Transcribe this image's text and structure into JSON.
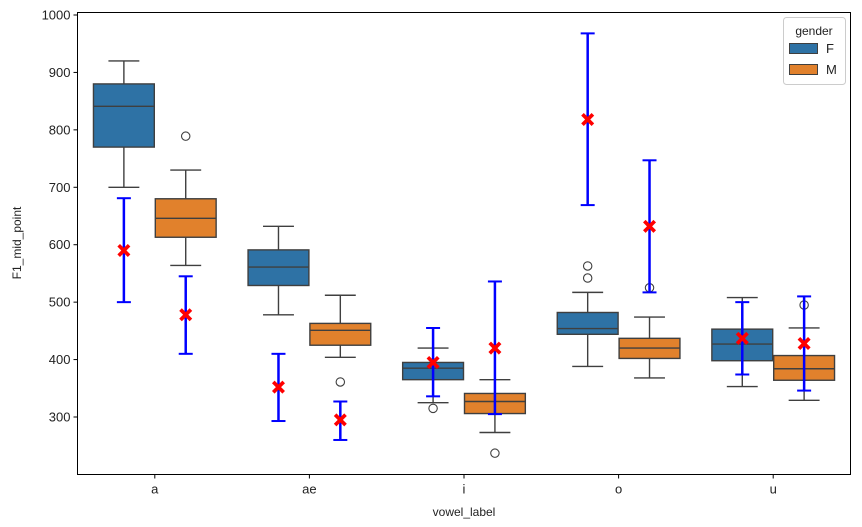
{
  "chart_data": {
    "type": "box",
    "title": "",
    "xlabel": "vowel_label",
    "ylabel": "F1_mid_point",
    "ylim": [
      200,
      1005
    ],
    "yticks": [
      300,
      400,
      500,
      600,
      700,
      800,
      900,
      1000
    ],
    "categories": [
      "a",
      "ae",
      "i",
      "o",
      "u"
    ],
    "grid": false,
    "legend": {
      "title": "gender",
      "placement": "top-right",
      "entries": [
        {
          "name": "F",
          "color": "#2e72a5"
        },
        {
          "name": "M",
          "color": "#e1812c"
        }
      ]
    },
    "series": [
      {
        "name": "F",
        "color": "#2e72a5",
        "boxes": [
          {
            "category": "a",
            "whisker_low": 700,
            "q1": 770,
            "median": 841,
            "q3": 880,
            "whisker_high": 920,
            "outliers": []
          },
          {
            "category": "ae",
            "whisker_low": 478,
            "q1": 529,
            "median": 561,
            "q3": 591,
            "whisker_high": 632,
            "outliers": []
          },
          {
            "category": "i",
            "whisker_low": 325,
            "q1": 365,
            "median": 385,
            "q3": 395,
            "whisker_high": 420,
            "outliers": [
              315
            ]
          },
          {
            "category": "o",
            "whisker_low": 388,
            "q1": 444,
            "median": 454,
            "q3": 482,
            "whisker_high": 517,
            "outliers": [
              542,
              563
            ]
          },
          {
            "category": "u",
            "whisker_low": 353,
            "q1": 398,
            "median": 427,
            "q3": 453,
            "whisker_high": 508,
            "outliers": []
          }
        ],
        "mean_errorbars": [
          {
            "category": "a",
            "mean": 590,
            "low": 500,
            "high": 681
          },
          {
            "category": "ae",
            "mean": 352,
            "low": 293,
            "high": 410
          },
          {
            "category": "i",
            "mean": 395,
            "low": 336,
            "high": 455
          },
          {
            "category": "o",
            "mean": 818,
            "low": 669,
            "high": 968
          },
          {
            "category": "u",
            "mean": 437,
            "low": 374,
            "high": 500
          }
        ]
      },
      {
        "name": "M",
        "color": "#e1812c",
        "boxes": [
          {
            "category": "a",
            "whisker_low": 564,
            "q1": 613,
            "median": 646,
            "q3": 680,
            "whisker_high": 730,
            "outliers": [
              789
            ]
          },
          {
            "category": "ae",
            "whisker_low": 404,
            "q1": 425,
            "median": 451,
            "q3": 463,
            "whisker_high": 512,
            "outliers": [
              361
            ]
          },
          {
            "category": "i",
            "whisker_low": 273,
            "q1": 306,
            "median": 327,
            "q3": 341,
            "whisker_high": 365,
            "outliers": [
              237
            ]
          },
          {
            "category": "o",
            "whisker_low": 368,
            "q1": 402,
            "median": 420,
            "q3": 437,
            "whisker_high": 474,
            "outliers": [
              525
            ]
          },
          {
            "category": "u",
            "whisker_low": 329,
            "q1": 364,
            "median": 384,
            "q3": 407,
            "whisker_high": 455,
            "outliers": [
              495
            ]
          }
        ],
        "mean_errorbars": [
          {
            "category": "a",
            "mean": 478,
            "low": 410,
            "high": 545
          },
          {
            "category": "ae",
            "mean": 295,
            "low": 260,
            "high": 327
          },
          {
            "category": "i",
            "mean": 420,
            "low": 305,
            "high": 536
          },
          {
            "category": "o",
            "mean": 632,
            "low": 517,
            "high": 747
          },
          {
            "category": "u",
            "mean": 428,
            "low": 346,
            "high": 510
          }
        ]
      }
    ],
    "errorbar_color": "#0000ff",
    "mean_marker_color": "#ff0000",
    "mean_marker": "X"
  }
}
